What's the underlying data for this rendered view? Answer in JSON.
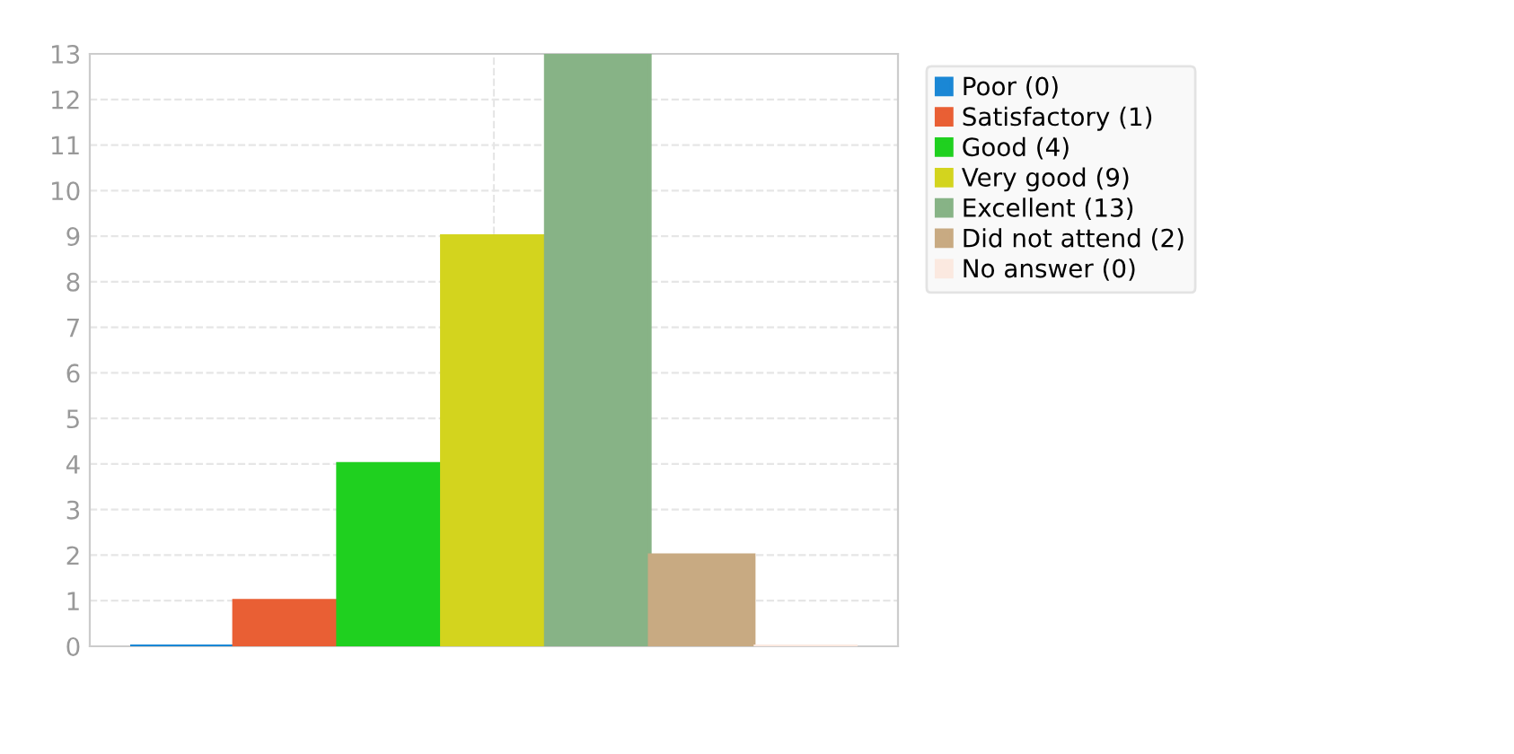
{
  "chart_data": {
    "type": "bar",
    "categories": [
      null
    ],
    "series": [
      {
        "name": "Poor (0)",
        "color": "#1a87d5",
        "values": [
          0
        ]
      },
      {
        "name": "Satisfactory (1)",
        "color": "#e95f34",
        "values": [
          1
        ]
      },
      {
        "name": "Good (4)",
        "color": "#1fd01f",
        "values": [
          4
        ]
      },
      {
        "name": "Very good (9)",
        "color": "#d3d41e",
        "values": [
          9
        ]
      },
      {
        "name": "Excellent (13)",
        "color": "#87b386",
        "values": [
          13
        ]
      },
      {
        "name": "Did not attend (2)",
        "color": "#c8aa82",
        "values": [
          2
        ]
      },
      {
        "name": "No answer (0)",
        "color": "#fbe9e0",
        "values": [
          0
        ]
      }
    ],
    "ylim": [
      0,
      13
    ],
    "yticks": [
      0,
      1,
      2,
      3,
      4,
      5,
      6,
      7,
      8,
      9,
      10,
      11,
      12,
      13
    ],
    "grid": true,
    "legend": "top right"
  }
}
